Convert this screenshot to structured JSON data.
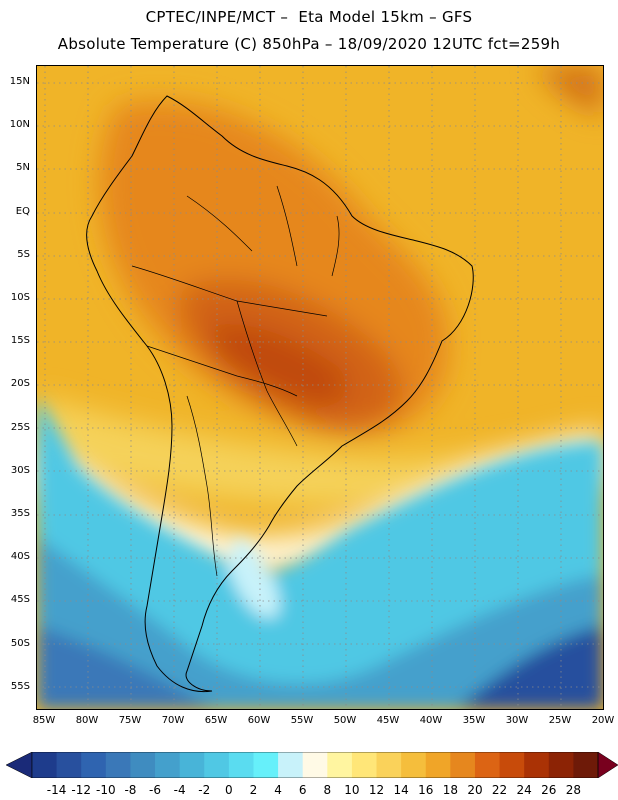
{
  "header": {
    "line1": "CPTEC/INPE/MCT –  Eta Model 15km – GFS",
    "line2": "Absolute Temperature (C) 850hPa – 18/09/2020 12UTC fct=259h"
  },
  "map": {
    "lat_labels": [
      "15N",
      "10N",
      "5N",
      "EQ",
      "5S",
      "10S",
      "15S",
      "20S",
      "25S",
      "30S",
      "35S",
      "40S",
      "45S",
      "50S",
      "55S"
    ],
    "lon_labels": [
      "85W",
      "80W",
      "75W",
      "70W",
      "65W",
      "60W",
      "55W",
      "50W",
      "45W",
      "40W",
      "35W",
      "30W",
      "25W",
      "20W"
    ],
    "grid_lines": "dotted"
  },
  "legend": {
    "labels": [
      "-14",
      "-12",
      "-10",
      "-8",
      "-6",
      "-4",
      "-2",
      "0",
      "2",
      "4",
      "6",
      "8",
      "10",
      "12",
      "14",
      "16",
      "18",
      "20",
      "22",
      "24",
      "26",
      "28"
    ],
    "colors": [
      "#1e3c8c",
      "#28509e",
      "#2f64b0",
      "#3a78b8",
      "#3f8cc0",
      "#44a0cc",
      "#48b4d8",
      "#50c8e4",
      "#5adcf0",
      "#66f0fa",
      "#c8f2fa",
      "#fffae6",
      "#fff5a0",
      "#ffe678",
      "#fad25a",
      "#f5be3c",
      "#f0a528",
      "#e6871e",
      "#dc6414",
      "#c84b0a",
      "#aa3205",
      "#8c2305",
      "#6e1a08"
    ],
    "end_colors": {
      "low": "#1a2a78",
      "high": "#78001e"
    }
  }
}
